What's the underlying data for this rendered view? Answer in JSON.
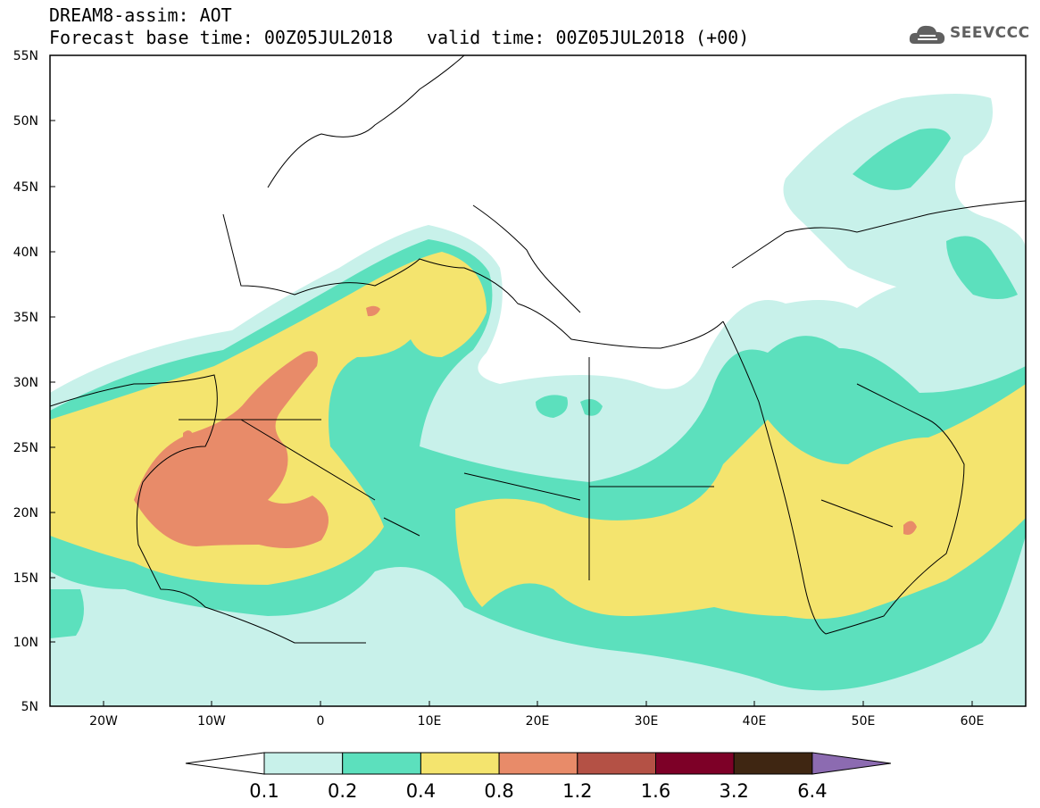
{
  "header": {
    "title": "DREAM8-assim: AOT",
    "base_time": "Forecast base time: 00Z05JUL2018",
    "valid_time": "valid time: 00Z05JUL2018 (+00)",
    "logo_text": "SEEVCCC"
  },
  "axes": {
    "lat_labels": [
      "55N",
      "50N",
      "45N",
      "40N",
      "35N",
      "30N",
      "25N",
      "20N",
      "15N",
      "10N",
      "5N"
    ],
    "lon_labels": [
      "20W",
      "10W",
      "0",
      "10E",
      "20E",
      "30E",
      "40E",
      "50E",
      "60E"
    ]
  },
  "colorbar": {
    "labels": [
      "0.1",
      "0.2",
      "0.4",
      "0.8",
      "1.2",
      "1.6",
      "3.2",
      "6.4"
    ],
    "colors": [
      "#ffffff",
      "#c8f1ea",
      "#5ce0bd",
      "#f4e46e",
      "#e88b69",
      "#b45145",
      "#7d0027",
      "#3f2612",
      "#8c6bb1"
    ]
  },
  "colors": {
    "very_low": "#c8f1ea",
    "low": "#5ce0bd",
    "medium": "#f4e46e",
    "high": "#e88b69"
  }
}
